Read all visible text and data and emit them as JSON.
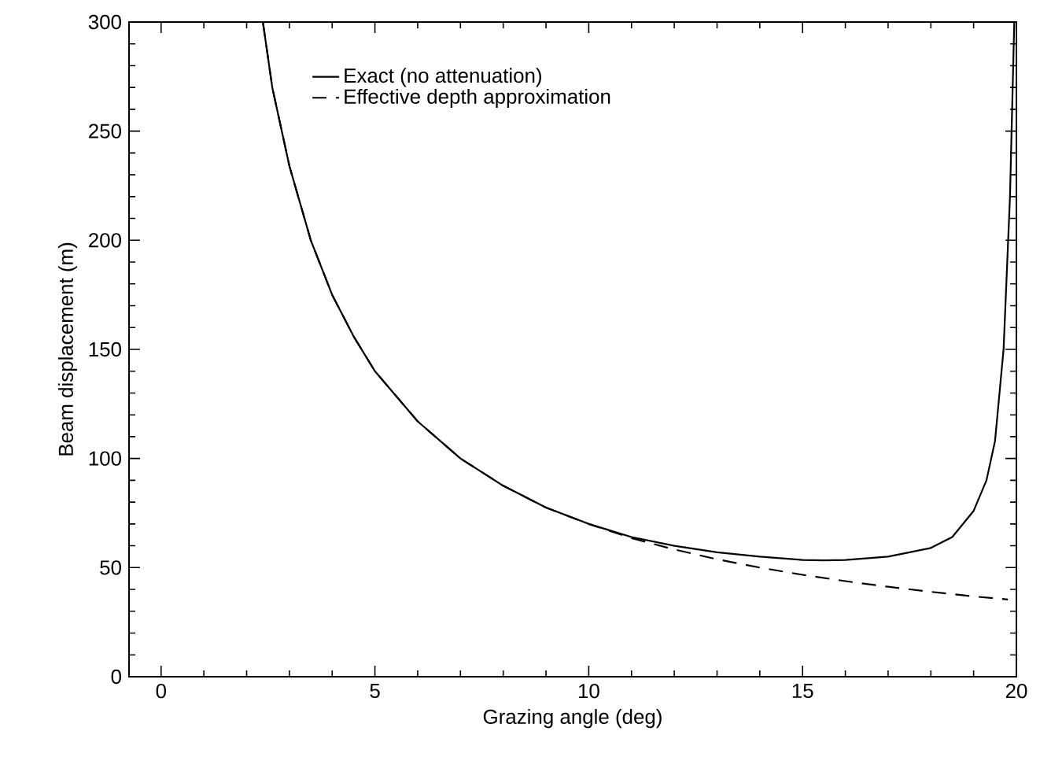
{
  "chart_data": {
    "type": "line",
    "xlabel": "Grazing angle (deg)",
    "ylabel": "Beam displacement (m)",
    "xlim": [
      -0.75,
      20
    ],
    "ylim": [
      0,
      300
    ],
    "xticks": [
      0,
      5,
      10,
      15,
      20
    ],
    "yticks": [
      0,
      50,
      100,
      150,
      200,
      250,
      300
    ],
    "grid": false,
    "legend": "top left",
    "marker": "none",
    "series": [
      {
        "name": "Exact (no attenuation)",
        "color": "#000000",
        "line_style": "solid",
        "x": [
          2.38,
          2.6,
          3,
          3.5,
          4,
          4.5,
          5,
          6,
          7,
          8,
          9,
          10,
          11,
          12,
          13,
          14,
          15,
          15.5,
          16,
          17,
          18,
          18.5,
          19,
          19.3,
          19.5,
          19.7,
          19.85,
          19.95
        ],
        "values": [
          300,
          270,
          234,
          200,
          175,
          156,
          140,
          117,
          100,
          87.5,
          77.5,
          70,
          64,
          60,
          57,
          55,
          53.5,
          53.3,
          53.5,
          55,
          59,
          64,
          76,
          90,
          108,
          150,
          220,
          300
        ]
      },
      {
        "name": "Effective depth approximation",
        "color": "#000000",
        "line_style": "dashed",
        "x": [
          2.38,
          2.6,
          3,
          3.5,
          4,
          4.5,
          5,
          6,
          7,
          8,
          9,
          10,
          11,
          12,
          13,
          14,
          15,
          16,
          17,
          18,
          19,
          19.8
        ],
        "values": [
          300,
          270,
          234,
          200,
          175,
          156,
          140,
          117,
          100,
          87.5,
          77.5,
          70,
          63.5,
          58.3,
          53.8,
          50,
          46.7,
          43.8,
          41.2,
          38.9,
          36.8,
          35.4
        ]
      }
    ]
  }
}
